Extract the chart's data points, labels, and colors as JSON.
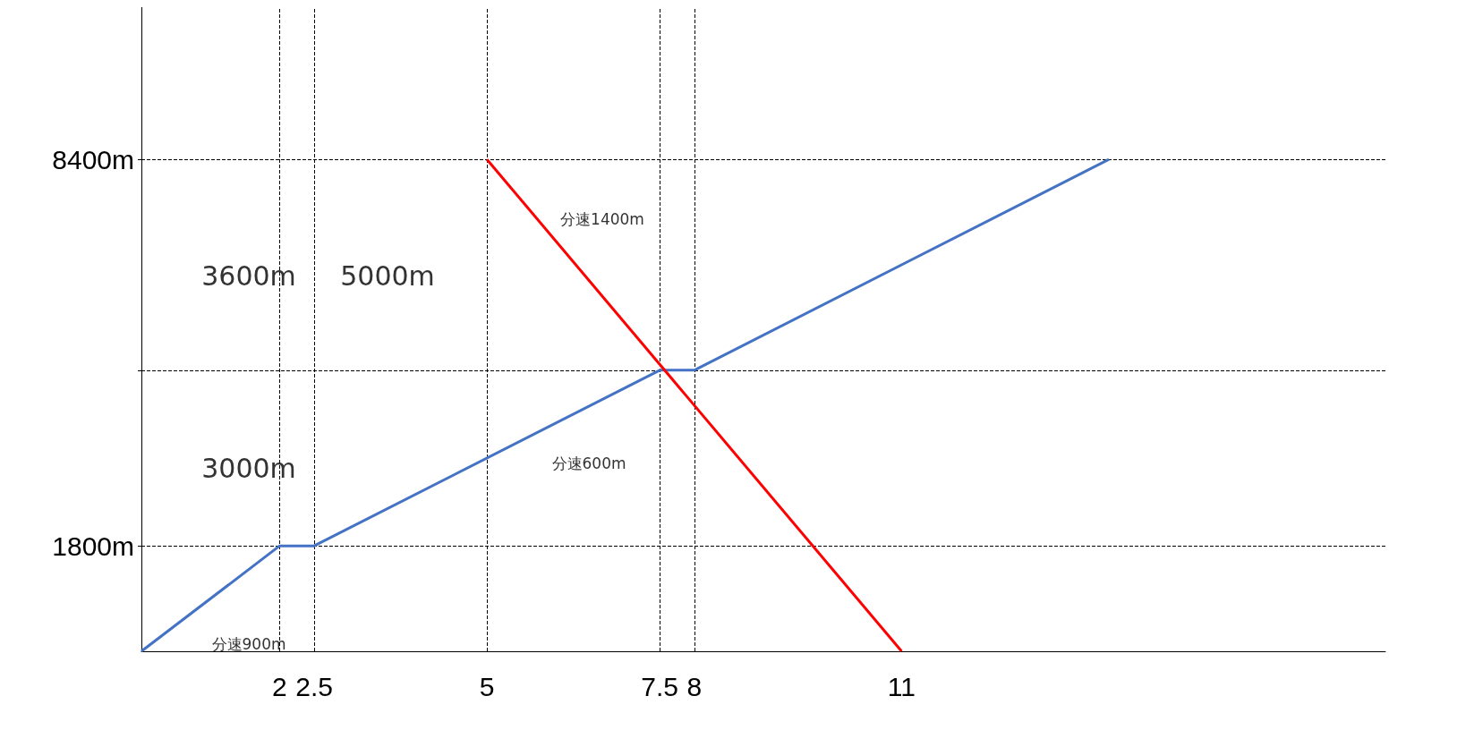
{
  "chart_data": {
    "type": "line",
    "xlim": [
      0,
      18
    ],
    "xticks": [
      2,
      2.5,
      5,
      7.5,
      8,
      11
    ],
    "ylim": [
      0,
      11000
    ],
    "yticks": [
      {
        "value": 1800,
        "label": "1800m"
      },
      {
        "value": 4800,
        "label": null
      },
      {
        "value": 8400,
        "label": "8400m"
      }
    ],
    "series": [
      {
        "color": "#4472c4",
        "x": [
          0,
          2,
          2.5,
          7.5,
          8,
          14
        ],
        "values": [
          0,
          1800,
          1800,
          4800,
          4800,
          8400
        ]
      },
      {
        "color": "#ff0000",
        "x": [
          5,
          11
        ],
        "values": [
          8400,
          0
        ]
      }
    ],
    "ref_lines": [
      {
        "axis": "y",
        "value": 8400,
        "line_style": "dashed"
      },
      {
        "axis": "y",
        "value": 4800,
        "line_style": "dashed"
      },
      {
        "axis": "y",
        "value": 1800,
        "line_style": "dashed"
      },
      {
        "axis": "x",
        "value": 2,
        "line_style": "dashed"
      },
      {
        "axis": "x",
        "value": 2.5,
        "line_style": "dashed"
      },
      {
        "axis": "x",
        "value": 5,
        "line_style": "dashed"
      },
      {
        "axis": "x",
        "value": 7.5,
        "line_style": "dashed"
      },
      {
        "axis": "x",
        "value": 8,
        "line_style": "dashed"
      }
    ],
    "annotations": [
      "3600m",
      "3000m",
      "5000m",
      "分速1400m",
      "分速600m",
      "分速900m"
    ],
    "marker": "none",
    "line_style": "solid",
    "grid": false
  }
}
